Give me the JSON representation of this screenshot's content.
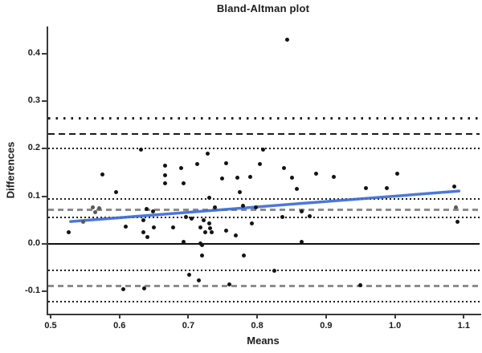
{
  "chart_data": {
    "type": "scatter",
    "title": "Bland-Altman plot",
    "xlabel": "Means",
    "ylabel": "Differences",
    "xlim": [
      0.4965,
      1.1253
    ],
    "ylim": [
      -0.1467,
      0.457
    ],
    "x_ticks": [
      0.5,
      0.6,
      0.7,
      0.8,
      0.9,
      1.0,
      1.1
    ],
    "y_ticks": [
      -0.1,
      0.0,
      0.1,
      0.2,
      0.3,
      0.4
    ],
    "grid": false,
    "legend": "none",
    "hlines": [
      {
        "name": "upper-loa-ci-upper",
        "value": 0.264,
        "style": "sparse-dotted",
        "color": "#1c1c1c"
      },
      {
        "name": "upper-loa",
        "value": 0.231,
        "style": "dashed",
        "color": "#1c1c1c"
      },
      {
        "name": "upper-loa-ci-lower",
        "value": 0.201,
        "style": "dotted",
        "color": "#1c1c1c"
      },
      {
        "name": "mean-ci-upper",
        "value": 0.094,
        "style": "dotted",
        "color": "#1c1c1c"
      },
      {
        "name": "mean-difference",
        "value": 0.073,
        "style": "dashed-gray",
        "color": "#8c8c8c"
      },
      {
        "name": "mean-ci-lower",
        "value": 0.055,
        "style": "dotted",
        "color": "#1c1c1c"
      },
      {
        "name": "zero-line",
        "value": 0.0,
        "style": "solid",
        "color": "#101010"
      },
      {
        "name": "lower-loa-ci-upper",
        "value": -0.055,
        "style": "dotted",
        "color": "#1c1c1c"
      },
      {
        "name": "lower-loa",
        "value": -0.088,
        "style": "dashed-gray",
        "color": "#8c8c8c"
      },
      {
        "name": "lower-loa-ci-lower",
        "value": -0.121,
        "style": "dotted",
        "color": "#1c1c1c"
      }
    ],
    "trend_line": {
      "x1": 0.529,
      "y1": 0.047,
      "x2": 1.093,
      "y2": 0.111,
      "color": "#3d6cd9",
      "width": 3.5
    },
    "series": [
      {
        "name": "differences",
        "marker_color": "#141414",
        "points": [
          [
            0.844,
            0.43
          ],
          [
            0.631,
            0.198
          ],
          [
            0.809,
            0.198
          ],
          [
            0.728,
            0.189
          ],
          [
            0.755,
            0.17
          ],
          [
            0.804,
            0.168
          ],
          [
            0.713,
            0.167
          ],
          [
            0.666,
            0.164
          ],
          [
            0.839,
            0.16
          ],
          [
            0.69,
            0.159
          ],
          [
            0.575,
            0.146
          ],
          [
            0.666,
            0.144
          ],
          [
            0.749,
            0.137
          ],
          [
            0.771,
            0.139
          ],
          [
            0.79,
            0.14
          ],
          [
            0.85,
            0.139
          ],
          [
            0.885,
            0.147
          ],
          [
            0.911,
            0.14
          ],
          [
            1.003,
            0.147
          ],
          [
            0.666,
            0.128
          ],
          [
            0.693,
            0.128
          ],
          [
            0.858,
            0.116
          ],
          [
            0.958,
            0.118
          ],
          [
            0.988,
            0.118
          ],
          [
            1.086,
            0.12
          ],
          [
            0.595,
            0.109
          ],
          [
            0.775,
            0.108
          ],
          [
            0.73,
            0.097
          ],
          [
            0.639,
            0.074
          ],
          [
            0.649,
            0.069
          ],
          [
            0.738,
            0.077
          ],
          [
            0.779,
            0.08
          ],
          [
            0.798,
            0.077
          ],
          [
            0.864,
            0.069
          ],
          [
            0.837,
            0.057
          ],
          [
            0.876,
            0.059
          ],
          [
            0.697,
            0.056
          ],
          [
            0.705,
            0.053
          ],
          [
            0.635,
            0.049
          ],
          [
            0.722,
            0.049
          ],
          [
            0.73,
            0.043
          ],
          [
            0.792,
            0.043
          ],
          [
            0.609,
            0.037
          ],
          [
            0.65,
            0.035
          ],
          [
            0.678,
            0.035
          ],
          [
            0.718,
            0.035
          ],
          [
            0.732,
            0.033
          ],
          [
            0.526,
            0.025
          ],
          [
            0.635,
            0.024
          ],
          [
            0.724,
            0.024
          ],
          [
            0.734,
            0.024
          ],
          [
            0.755,
            0.027
          ],
          [
            0.769,
            0.018
          ],
          [
            0.641,
            0.015
          ],
          [
            0.693,
            0.005
          ],
          [
            0.718,
            0.001
          ],
          [
            0.864,
            0.004
          ],
          [
            0.72,
            -0.003
          ],
          [
            0.72,
            -0.025
          ],
          [
            0.78,
            -0.024
          ],
          [
            0.825,
            -0.057
          ],
          [
            0.701,
            -0.065
          ],
          [
            0.715,
            -0.076
          ],
          [
            0.76,
            -0.085
          ],
          [
            0.95,
            -0.087
          ],
          [
            0.606,
            -0.096
          ],
          [
            0.636,
            -0.094
          ],
          [
            1.091,
            0.047
          ]
        ]
      },
      {
        "name": "differences-muted",
        "marker_color": "#5a5a5a",
        "points": [
          [
            0.561,
            0.077
          ],
          [
            0.571,
            0.075
          ],
          [
            0.565,
            0.066
          ],
          [
            0.547,
            0.046
          ],
          [
            1.088,
            0.076
          ]
        ]
      }
    ]
  },
  "colors": {
    "background": "#ffffff",
    "axis": "#3a3a3a",
    "text": "#1c1c1c",
    "trend": "#3d6cd9",
    "marker": "#141414",
    "guide_gray": "#8c8c8c"
  }
}
